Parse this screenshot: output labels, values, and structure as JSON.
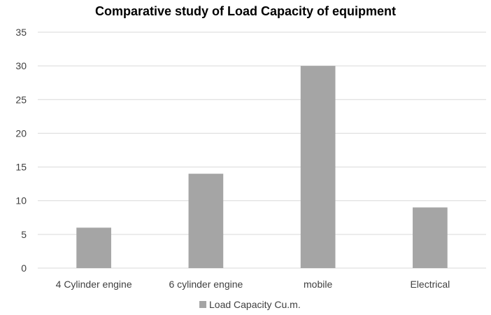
{
  "chart_data": {
    "type": "bar",
    "title": "Comparative study of Load Capacity of  equipment",
    "xlabel": "",
    "ylabel": "",
    "categories": [
      "4 Cylinder engine",
      "6 cylinder engine",
      "mobile",
      "Electrical"
    ],
    "series": [
      {
        "name": "Load Capacity Cu.m.",
        "values": [
          6,
          14,
          30,
          9
        ],
        "color": "#a5a5a5"
      }
    ],
    "ylim": [
      0,
      35
    ],
    "yticks": [
      0,
      5,
      10,
      15,
      20,
      25,
      30,
      35
    ],
    "grid": true,
    "grid_color": "#d9d9d9",
    "legend_position": "bottom"
  }
}
